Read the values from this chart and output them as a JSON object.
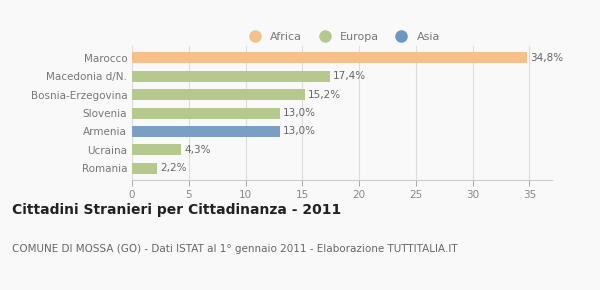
{
  "categories": [
    "Romania",
    "Ucraina",
    "Armenia",
    "Slovenia",
    "Bosnia-Erzegovina",
    "Macedonia d/N.",
    "Marocco"
  ],
  "values": [
    2.2,
    4.3,
    13.0,
    13.0,
    15.2,
    17.4,
    34.8
  ],
  "labels": [
    "2,2%",
    "4,3%",
    "13,0%",
    "13,0%",
    "15,2%",
    "17,4%",
    "34,8%"
  ],
  "colors": [
    "#b5c98e",
    "#b5c98e",
    "#7b9fc4",
    "#b5c98e",
    "#b5c98e",
    "#b5c98e",
    "#f5c08a"
  ],
  "legend": [
    {
      "label": "Africa",
      "color": "#f5c08a"
    },
    {
      "label": "Europa",
      "color": "#b5c98e"
    },
    {
      "label": "Asia",
      "color": "#6b96c0"
    }
  ],
  "xlim": [
    0,
    37
  ],
  "xticks": [
    0,
    5,
    10,
    15,
    20,
    25,
    30,
    35
  ],
  "title_bold": "Cittadini Stranieri per Cittadinanza - 2011",
  "subtitle": "COMUNE DI MOSSA (GO) - Dati ISTAT al 1° gennaio 2011 - Elaborazione TUTTITALIA.IT",
  "background_color": "#f9f9f9",
  "bar_height": 0.6,
  "label_fontsize": 7.5,
  "tick_fontsize": 7.5,
  "title_fontsize": 10,
  "subtitle_fontsize": 7.5,
  "ylabel_color": "#777777",
  "value_label_color": "#666666",
  "grid_color": "#dddddd"
}
